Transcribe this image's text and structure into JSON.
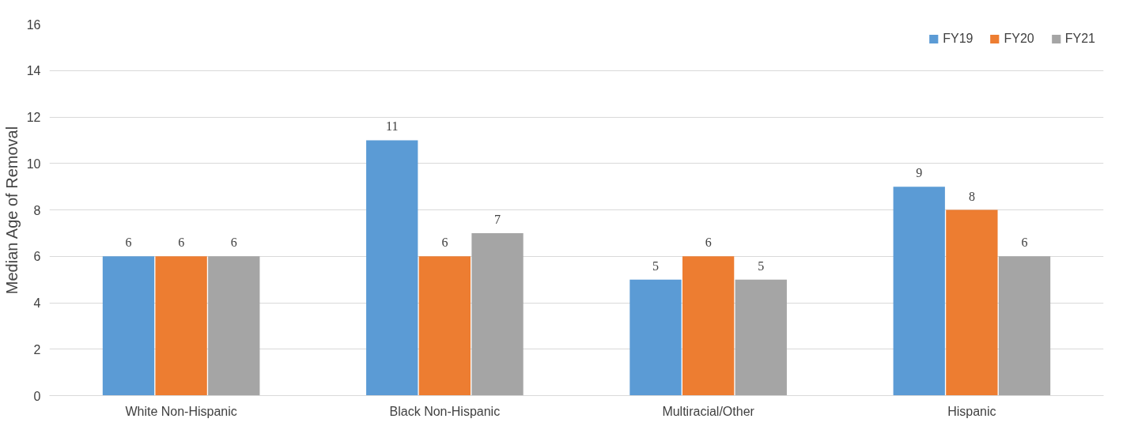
{
  "chart_data": {
    "type": "bar",
    "ylabel": "Median Age of Removal",
    "categories": [
      "White Non-Hispanic",
      "Black Non-Hispanic",
      "Multiracial/Other",
      "Hispanic"
    ],
    "series": [
      {
        "name": "FY19",
        "color": "#5b9bd5",
        "values": [
          6,
          11,
          5,
          9
        ]
      },
      {
        "name": "FY20",
        "color": "#ed7d31",
        "values": [
          6,
          6,
          6,
          8
        ]
      },
      {
        "name": "FY21",
        "color": "#a5a5a5",
        "values": [
          6,
          7,
          5,
          6
        ]
      }
    ],
    "ylim": [
      0,
      16
    ],
    "yticks": [
      0,
      2,
      4,
      6,
      8,
      10,
      12,
      14,
      16
    ],
    "grid": "y",
    "legend": "top right",
    "data_labels": true
  }
}
